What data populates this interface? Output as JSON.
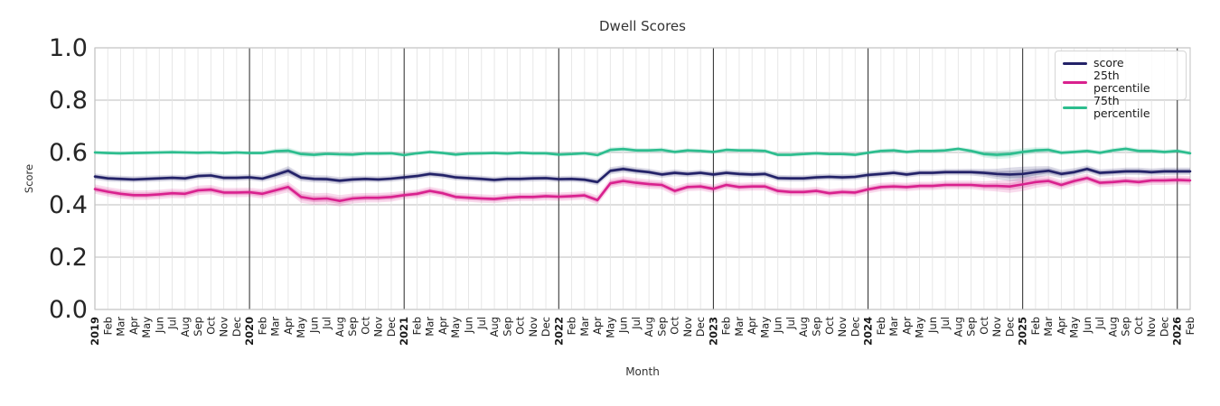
{
  "chart_data": {
    "type": "line",
    "title": "Dwell Scores",
    "xlabel": "Month",
    "ylabel": "Score",
    "ylim": [
      0.0,
      1.0
    ],
    "yticks": [
      "0.0",
      "0.2",
      "0.4",
      "0.6",
      "0.8",
      "1.0"
    ],
    "grid": true,
    "legend_position": "upper right",
    "x_labels": [
      "2019",
      "Feb",
      "Mar",
      "Apr",
      "May",
      "Jun",
      "Jul",
      "Aug",
      "Sep",
      "Oct",
      "Nov",
      "Dec",
      "2020",
      "Feb",
      "Mar",
      "Apr",
      "May",
      "Jun",
      "Jul",
      "Aug",
      "Sep",
      "Oct",
      "Nov",
      "Dec",
      "2021",
      "Feb",
      "Mar",
      "Apr",
      "May",
      "Jun",
      "Jul",
      "Aug",
      "Sep",
      "Oct",
      "Nov",
      "Dec",
      "2022",
      "Feb",
      "Mar",
      "Apr",
      "May",
      "Jun",
      "Jul",
      "Aug",
      "Sep",
      "Oct",
      "Nov",
      "Dec",
      "2023",
      "Feb",
      "Mar",
      "Apr",
      "May",
      "Jun",
      "Jul",
      "Aug",
      "Sep",
      "Oct",
      "Nov",
      "Dec",
      "2024",
      "Feb",
      "Mar",
      "Apr",
      "May",
      "Jun",
      "Jul",
      "Aug",
      "Sep",
      "Oct",
      "Nov",
      "Dec",
      "2025",
      "Feb",
      "Mar",
      "Apr",
      "May",
      "Jun",
      "Jul",
      "Aug",
      "Sep",
      "Oct",
      "Nov",
      "Dec",
      "2026",
      "Feb"
    ],
    "year_tick_indices": [
      0,
      12,
      24,
      36,
      48,
      60,
      72,
      84
    ],
    "series": [
      {
        "name": "score",
        "color": "#232268",
        "values": [
          0.508,
          0.501,
          0.499,
          0.497,
          0.499,
          0.501,
          0.503,
          0.501,
          0.51,
          0.512,
          0.503,
          0.503,
          0.505,
          0.5,
          0.514,
          0.53,
          0.504,
          0.499,
          0.498,
          0.492,
          0.497,
          0.499,
          0.497,
          0.5,
          0.505,
          0.51,
          0.518,
          0.513,
          0.505,
          0.502,
          0.499,
          0.495,
          0.499,
          0.499,
          0.501,
          0.502,
          0.498,
          0.499,
          0.496,
          0.487,
          0.53,
          0.537,
          0.53,
          0.525,
          0.516,
          0.522,
          0.518,
          0.522,
          0.516,
          0.522,
          0.518,
          0.516,
          0.518,
          0.502,
          0.501,
          0.501,
          0.505,
          0.507,
          0.505,
          0.507,
          0.514,
          0.518,
          0.522,
          0.516,
          0.522,
          0.522,
          0.525,
          0.525,
          0.525,
          0.522,
          0.518,
          0.516,
          0.518,
          0.525,
          0.53,
          0.518,
          0.525,
          0.537,
          0.522,
          0.525,
          0.528,
          0.528,
          0.525,
          0.528,
          0.528,
          0.528
        ],
        "band_halfwidth": [
          0.012,
          0.012,
          0.012,
          0.012,
          0.012,
          0.012,
          0.012,
          0.012,
          0.012,
          0.012,
          0.012,
          0.012,
          0.012,
          0.012,
          0.015,
          0.018,
          0.014,
          0.014,
          0.014,
          0.014,
          0.013,
          0.012,
          0.012,
          0.012,
          0.012,
          0.012,
          0.012,
          0.012,
          0.012,
          0.012,
          0.012,
          0.012,
          0.012,
          0.012,
          0.012,
          0.012,
          0.012,
          0.012,
          0.012,
          0.013,
          0.014,
          0.014,
          0.013,
          0.013,
          0.013,
          0.013,
          0.012,
          0.012,
          0.012,
          0.012,
          0.012,
          0.012,
          0.012,
          0.012,
          0.012,
          0.012,
          0.012,
          0.012,
          0.012,
          0.012,
          0.012,
          0.012,
          0.012,
          0.012,
          0.012,
          0.012,
          0.012,
          0.012,
          0.013,
          0.015,
          0.02,
          0.026,
          0.028,
          0.022,
          0.018,
          0.016,
          0.015,
          0.014,
          0.014,
          0.014,
          0.014,
          0.014,
          0.014,
          0.014,
          0.014,
          0.014
        ]
      },
      {
        "name": "25th percentile",
        "color": "#d9218e",
        "values": [
          0.46,
          0.45,
          0.442,
          0.437,
          0.437,
          0.44,
          0.444,
          0.442,
          0.455,
          0.458,
          0.447,
          0.447,
          0.448,
          0.442,
          0.455,
          0.468,
          0.43,
          0.422,
          0.424,
          0.415,
          0.424,
          0.427,
          0.427,
          0.43,
          0.437,
          0.442,
          0.453,
          0.444,
          0.43,
          0.427,
          0.424,
          0.422,
          0.427,
          0.43,
          0.43,
          0.433,
          0.431,
          0.433,
          0.436,
          0.418,
          0.482,
          0.491,
          0.484,
          0.479,
          0.476,
          0.453,
          0.468,
          0.47,
          0.461,
          0.476,
          0.468,
          0.47,
          0.47,
          0.453,
          0.449,
          0.449,
          0.453,
          0.444,
          0.449,
          0.447,
          0.459,
          0.468,
          0.47,
          0.468,
          0.472,
          0.472,
          0.476,
          0.476,
          0.476,
          0.472,
          0.472,
          0.47,
          0.478,
          0.487,
          0.491,
          0.476,
          0.491,
          0.502,
          0.484,
          0.487,
          0.491,
          0.487,
          0.493,
          0.493,
          0.495,
          0.493
        ],
        "band_halfwidth": [
          0.018,
          0.018,
          0.018,
          0.018,
          0.018,
          0.018,
          0.018,
          0.018,
          0.018,
          0.018,
          0.018,
          0.018,
          0.018,
          0.018,
          0.019,
          0.02,
          0.022,
          0.022,
          0.022,
          0.022,
          0.019,
          0.018,
          0.018,
          0.018,
          0.016,
          0.016,
          0.016,
          0.016,
          0.016,
          0.016,
          0.016,
          0.016,
          0.016,
          0.016,
          0.016,
          0.016,
          0.016,
          0.016,
          0.016,
          0.017,
          0.018,
          0.018,
          0.018,
          0.018,
          0.017,
          0.017,
          0.016,
          0.016,
          0.016,
          0.016,
          0.016,
          0.016,
          0.016,
          0.016,
          0.016,
          0.016,
          0.016,
          0.016,
          0.016,
          0.016,
          0.016,
          0.016,
          0.016,
          0.016,
          0.016,
          0.016,
          0.016,
          0.016,
          0.016,
          0.018,
          0.021,
          0.024,
          0.026,
          0.022,
          0.019,
          0.018,
          0.018,
          0.017,
          0.017,
          0.017,
          0.017,
          0.017,
          0.017,
          0.017,
          0.017,
          0.017
        ]
      },
      {
        "name": "75th percentile",
        "color": "#2cbd8e",
        "values": [
          0.6,
          0.598,
          0.597,
          0.598,
          0.599,
          0.6,
          0.601,
          0.6,
          0.599,
          0.6,
          0.598,
          0.6,
          0.598,
          0.598,
          0.605,
          0.607,
          0.594,
          0.591,
          0.595,
          0.593,
          0.592,
          0.596,
          0.596,
          0.597,
          0.59,
          0.597,
          0.602,
          0.598,
          0.592,
          0.596,
          0.597,
          0.598,
          0.596,
          0.599,
          0.597,
          0.597,
          0.592,
          0.594,
          0.597,
          0.59,
          0.61,
          0.613,
          0.608,
          0.608,
          0.61,
          0.602,
          0.608,
          0.606,
          0.602,
          0.61,
          0.608,
          0.608,
          0.606,
          0.591,
          0.591,
          0.594,
          0.597,
          0.594,
          0.594,
          0.591,
          0.599,
          0.606,
          0.608,
          0.602,
          0.606,
          0.606,
          0.608,
          0.614,
          0.606,
          0.594,
          0.591,
          0.594,
          0.602,
          0.608,
          0.61,
          0.599,
          0.602,
          0.606,
          0.599,
          0.608,
          0.614,
          0.606,
          0.606,
          0.602,
          0.606,
          0.597
        ],
        "band_halfwidth": [
          0.008,
          0.008,
          0.008,
          0.008,
          0.008,
          0.008,
          0.008,
          0.008,
          0.008,
          0.008,
          0.008,
          0.008,
          0.008,
          0.008,
          0.01,
          0.012,
          0.011,
          0.01,
          0.009,
          0.009,
          0.009,
          0.008,
          0.008,
          0.008,
          0.008,
          0.008,
          0.008,
          0.008,
          0.008,
          0.008,
          0.008,
          0.008,
          0.008,
          0.008,
          0.008,
          0.008,
          0.008,
          0.008,
          0.008,
          0.009,
          0.01,
          0.01,
          0.009,
          0.009,
          0.009,
          0.009,
          0.008,
          0.008,
          0.008,
          0.008,
          0.008,
          0.008,
          0.008,
          0.008,
          0.008,
          0.008,
          0.008,
          0.008,
          0.008,
          0.008,
          0.008,
          0.008,
          0.008,
          0.008,
          0.008,
          0.008,
          0.008,
          0.008,
          0.009,
          0.013,
          0.016,
          0.016,
          0.014,
          0.012,
          0.01,
          0.009,
          0.009,
          0.009,
          0.009,
          0.009,
          0.009,
          0.009,
          0.009,
          0.009,
          0.009,
          0.009
        ]
      }
    ]
  }
}
